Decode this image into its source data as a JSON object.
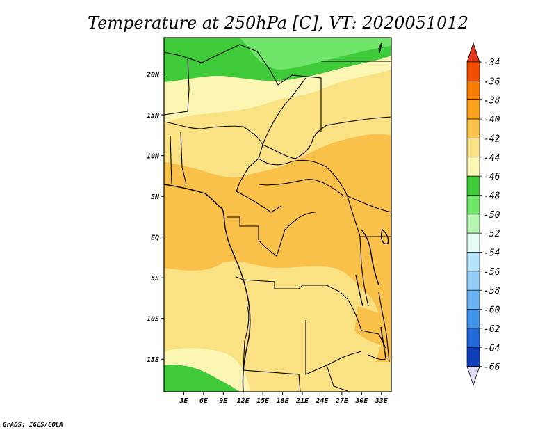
{
  "title": "Temperature at 250hPa [C], VT: 2020051012",
  "credit": "GrADS: IGES/COLA",
  "map": {
    "lon_range": [
      0,
      34.5
    ],
    "lat_range": [
      -19,
      24.5
    ],
    "lon_ticks": [
      {
        "value": 3,
        "label": "3E"
      },
      {
        "value": 6,
        "label": "6E"
      },
      {
        "value": 9,
        "label": "9E"
      },
      {
        "value": 12,
        "label": "12E"
      },
      {
        "value": 15,
        "label": "15E"
      },
      {
        "value": 18,
        "label": "18E"
      },
      {
        "value": 21,
        "label": "21E"
      },
      {
        "value": 24,
        "label": "24E"
      },
      {
        "value": 27,
        "label": "27E"
      },
      {
        "value": 30,
        "label": "30E"
      },
      {
        "value": 33,
        "label": "33E"
      }
    ],
    "lat_ticks": [
      {
        "value": 20,
        "label": "20N"
      },
      {
        "value": 15,
        "label": "15N"
      },
      {
        "value": 10,
        "label": "10N"
      },
      {
        "value": 5,
        "label": "5N"
      },
      {
        "value": 0,
        "label": "EQ"
      },
      {
        "value": -5,
        "label": "5S"
      },
      {
        "value": -10,
        "label": "10S"
      },
      {
        "value": -15,
        "label": "15S"
      }
    ]
  },
  "colorbar": {
    "levels": [
      {
        "label": "-34",
        "color": "#f24c00"
      },
      {
        "label": "-36",
        "color": "#f77e00"
      },
      {
        "label": "-38",
        "color": "#f9a11c"
      },
      {
        "label": "-40",
        "color": "#f9c04a"
      },
      {
        "label": "-42",
        "color": "#fae183"
      },
      {
        "label": "-44",
        "color": "#fcf6b4"
      },
      {
        "label": "-46",
        "color": "#3fca39"
      },
      {
        "label": "-48",
        "color": "#6fe56a"
      },
      {
        "label": "-50",
        "color": "#b6f6b0"
      },
      {
        "label": "-52",
        "color": "#e4fcf4"
      },
      {
        "label": "-54",
        "color": "#b3e4fc"
      },
      {
        "label": "-56",
        "color": "#93cdf6"
      },
      {
        "label": "-58",
        "color": "#6bb2f2"
      },
      {
        "label": "-60",
        "color": "#4094ea"
      },
      {
        "label": "-62",
        "color": "#2169d6"
      },
      {
        "label": "-64",
        "color": "#1040b8"
      },
      {
        "label": "-66",
        "color": "#0c1a7a"
      }
    ],
    "top_arrow_color": "#e03a1a",
    "bottom_arrow_color": "#dfe0f8"
  }
}
